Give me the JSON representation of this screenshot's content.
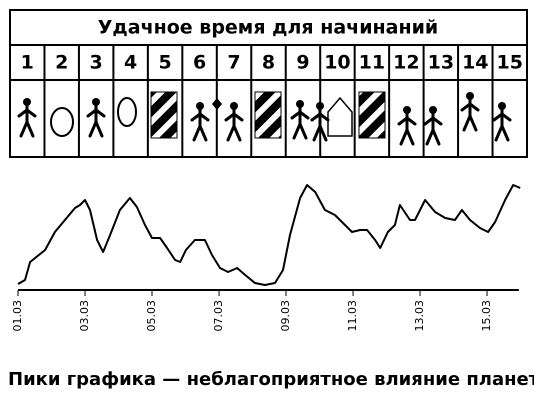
{
  "header": {
    "title": "Удачное время для начинаний",
    "days": [
      1,
      2,
      3,
      4,
      5,
      6,
      7,
      8,
      9,
      10,
      11,
      12,
      13,
      14,
      15
    ]
  },
  "chart_data": {
    "type": "line",
    "caption": "Пики графика — неблагоприятное влияние планет",
    "color": "#000000",
    "x": [
      1.0,
      1.21,
      1.36,
      1.51,
      1.81,
      2.1,
      2.4,
      2.7,
      2.85,
      3.0,
      3.15,
      3.36,
      3.54,
      3.75,
      4.04,
      4.34,
      4.55,
      4.79,
      5.0,
      5.24,
      5.45,
      5.69,
      5.84,
      6.01,
      6.28,
      6.58,
      6.79,
      7.03,
      7.27,
      7.54,
      7.78,
      8.07,
      8.37,
      8.67,
      8.91,
      9.12,
      9.42,
      9.63,
      9.87,
      10.16,
      10.46,
      10.76,
      10.97,
      11.21,
      11.42,
      11.66,
      11.81,
      12.04,
      12.25,
      12.4,
      12.7,
      12.85,
      13.15,
      13.45,
      13.75,
      14.04,
      14.25,
      14.49,
      14.79,
      15.03,
      15.24,
      15.54,
      15.78,
      15.99
    ],
    "values": [
      6,
      10,
      28,
      32,
      40,
      58,
      70,
      82,
      85,
      90,
      80,
      50,
      38,
      55,
      80,
      92,
      83,
      65,
      52,
      52,
      42,
      30,
      28,
      40,
      50,
      50,
      35,
      22,
      18,
      22,
      15,
      7,
      5,
      7,
      20,
      55,
      92,
      105,
      98,
      80,
      75,
      65,
      58,
      60,
      60,
      50,
      42,
      58,
      65,
      85,
      70,
      70,
      90,
      78,
      72,
      70,
      80,
      70,
      62,
      58,
      68,
      90,
      105,
      102
    ],
    "xlim": [
      1,
      16.1
    ],
    "xticks": [
      {
        "value": 1,
        "label": "01.03"
      },
      {
        "value": 3,
        "label": "03.03"
      },
      {
        "value": 5,
        "label": "05.03"
      },
      {
        "value": 7,
        "label": "07.03"
      },
      {
        "value": 9,
        "label": "09.03"
      },
      {
        "value": 11,
        "label": "11.03"
      },
      {
        "value": 13,
        "label": "13.03"
      },
      {
        "value": 15,
        "label": "15.03"
      }
    ],
    "ylim": [
      0,
      110
    ]
  }
}
